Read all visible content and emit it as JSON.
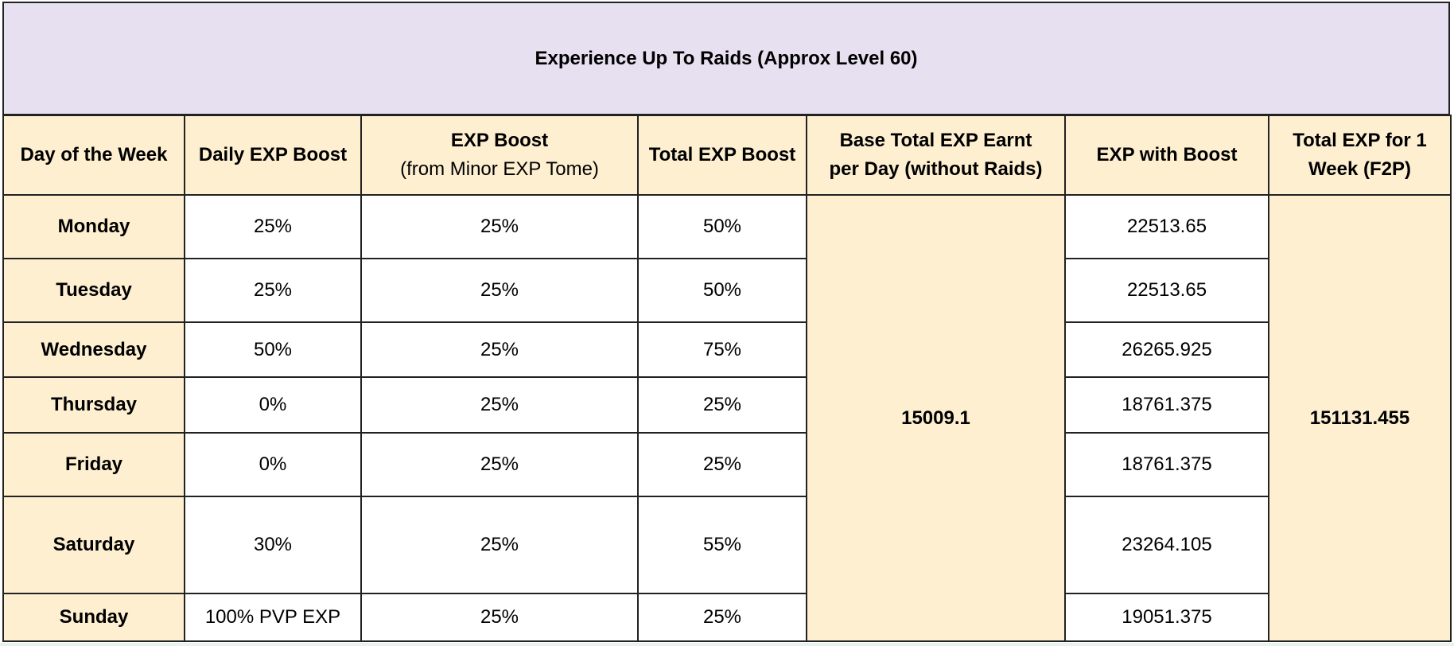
{
  "title": "Experience Up To Raids (Approx Level 60)",
  "headers": {
    "day": "Day of the Week",
    "daily_boost": "Daily EXP Boost",
    "tome_boost_line1": "EXP Boost",
    "tome_boost_line2": "(from Minor EXP Tome)",
    "total_boost": "Total EXP Boost",
    "base_line1": "Base Total EXP Earnt",
    "base_line2": "per Day (without Raids)",
    "exp_with_boost": "EXP with Boost",
    "total_week_line1": "Total EXP for 1",
    "total_week_line2": "Week (F2P)"
  },
  "rows": [
    {
      "day": "Monday",
      "daily_boost": "25%",
      "tome_boost": "25%",
      "total_boost": "50%",
      "exp_with_boost": "22513.65"
    },
    {
      "day": "Tuesday",
      "daily_boost": "25%",
      "tome_boost": "25%",
      "total_boost": "50%",
      "exp_with_boost": "22513.65"
    },
    {
      "day": "Wednesday",
      "daily_boost": "50%",
      "tome_boost": "25%",
      "total_boost": "75%",
      "exp_with_boost": "26265.925"
    },
    {
      "day": "Thursday",
      "daily_boost": "0%",
      "tome_boost": "25%",
      "total_boost": "25%",
      "exp_with_boost": "18761.375"
    },
    {
      "day": "Friday",
      "daily_boost": "0%",
      "tome_boost": "25%",
      "total_boost": "25%",
      "exp_with_boost": "18761.375"
    },
    {
      "day": "Saturday",
      "daily_boost": "30%",
      "tome_boost": "25%",
      "total_boost": "55%",
      "exp_with_boost": "23264.105"
    },
    {
      "day": "Sunday",
      "daily_boost": "100% PVP EXP",
      "tome_boost": "25%",
      "total_boost": "25%",
      "exp_with_boost": "19051.375"
    }
  ],
  "base_total_exp": "15009.1",
  "total_week_exp": "151131.455",
  "colors": {
    "title_bg": "#e6e0f0",
    "header_bg": "#fdefd0",
    "cell_bg": "#ffffff",
    "border": "#222222"
  }
}
